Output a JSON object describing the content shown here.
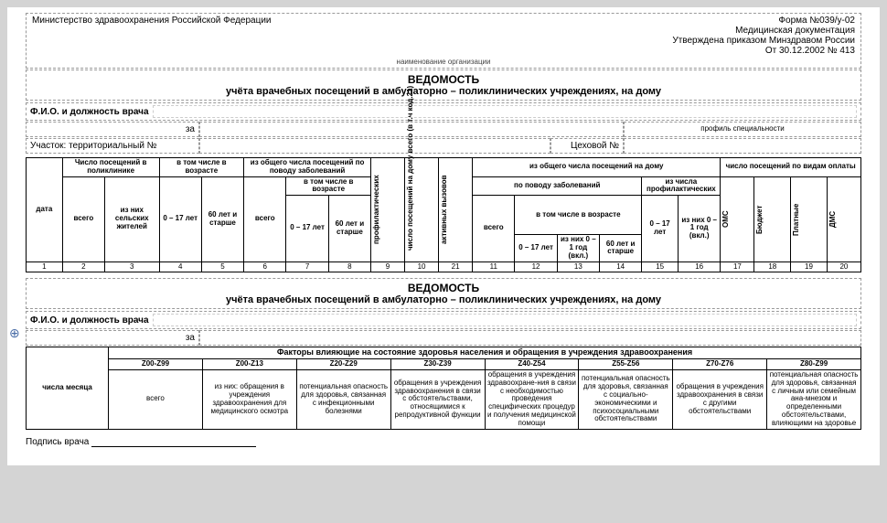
{
  "header": {
    "ministry": "Министерство здравоохранения Российской Федерации",
    "form_no": "Форма №039/у-02",
    "doc_type": "Медицинская документация",
    "approved": "Утверждена приказом Минздравом России",
    "date_order": "От 30.12.2002   № 413",
    "org_label": "наименование организации"
  },
  "title": {
    "line1": "ВЕДОМОСТЬ",
    "line2": "учёта  врачебных посещений в амбулаторно – поликлинических учреждениях, на дому"
  },
  "fio": {
    "label": "Ф.И.О.  и должность врача",
    "za": "за",
    "profile_label": "профиль специальности",
    "uchastok": "Участок: территориальный №",
    "cexovoy": "Цеховой №"
  },
  "t1": {
    "date": "дата",
    "visits_clinic": "Число посещений в поликлинике",
    "age_group": "в том числе в возрасте",
    "from_total_disease": "из общего числа посещений по поводу заболеваний",
    "in_age": "в том числе в возрасте",
    "vsego": "всего",
    "rural": "из них сельских жителей",
    "a0_17": "0 – 17 лет",
    "a60": "60 лет и старше",
    "prophyl": "профилактических",
    "home_visits": "число посещений на дому всего (в т.ч код.21)",
    "active_calls": "активных вызовов",
    "from_total_home": "из общего числа посещений на дому",
    "by_disease": "по поводу заболеваний",
    "from_prophyl": "из числа профилактических",
    "a0_1": "из них 0 – 1 год (вкл.)",
    "by_payment": "число посещений по видам оплаты",
    "oms": "ОМС",
    "budget": "Бюджет",
    "paid": "Платные",
    "dms": "ДМС",
    "nums": [
      "1",
      "2",
      "3",
      "4",
      "5",
      "6",
      "7",
      "8",
      "9",
      "10",
      "21",
      "11",
      "12",
      "13",
      "14",
      "15",
      "16",
      "17",
      "18",
      "19",
      "20"
    ]
  },
  "factors": {
    "heading": "Факторы влияющие на состояние здоровья населения и обращения в учреждения здравоохранения",
    "month_days": "числа месяца",
    "cols": [
      {
        "code": "Z00-Z99",
        "text": "всего"
      },
      {
        "code": "Z00-Z13",
        "text": "из них: обращения в учреждения здравоохранения для медицинского осмотра"
      },
      {
        "code": "Z20-Z29",
        "text": "потенциальная опасность для здоровья, связанная с инфекционными болезнями"
      },
      {
        "code": "Z30-Z39",
        "text": "обращения в учреждения здравоохранения в связи с обстоятельствами, относящимися к репродуктивной функции"
      },
      {
        "code": "Z40-Z54",
        "text": "обращения в учреждения здравоохране-ния в связи с необходимостью проведения специфических процедур и получения медицинской помощи"
      },
      {
        "code": "Z55-Z56",
        "text": "потенциальная опасность для здоровья, связанная с социально-экономическими и психосоциальными обстоятельствами"
      },
      {
        "code": "Z70-Z76",
        "text": "обращения в учреждения здравоохранения в связи с другими обстоятельствами"
      },
      {
        "code": "Z80-Z99",
        "text": "потенциальная опасность для здоровья, связанная с личным или семейным ана-мнезом и определенными обстоятельствами, влияющими на здоровье"
      }
    ]
  },
  "signature": "Подпись врача"
}
